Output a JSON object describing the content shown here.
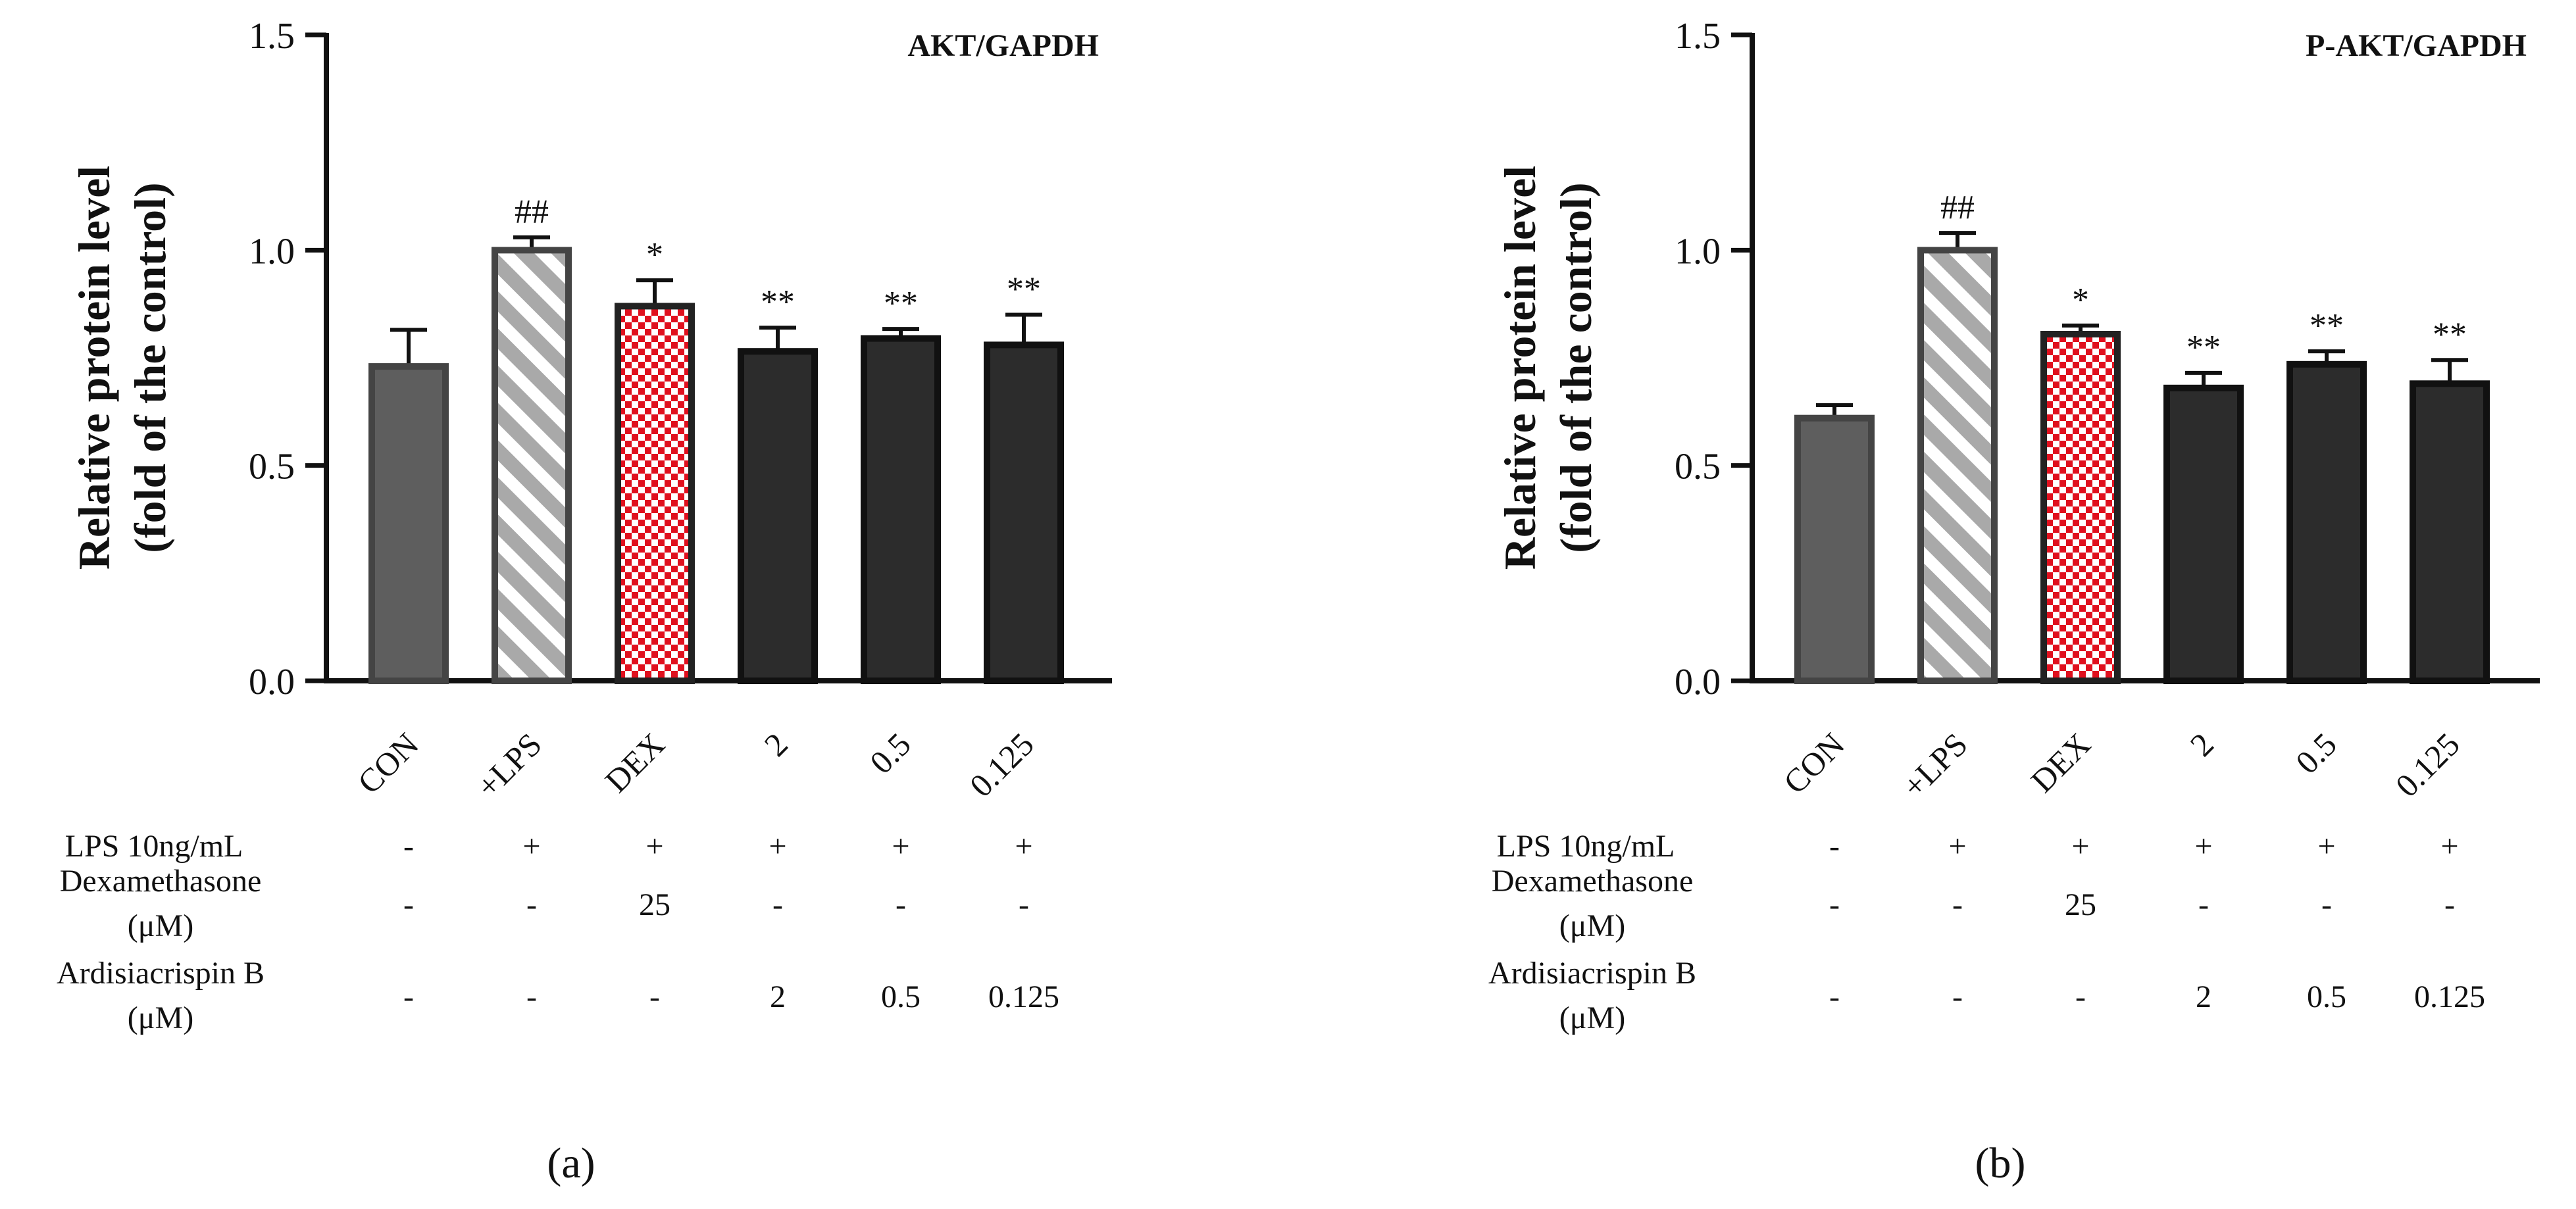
{
  "chart_data": [
    {
      "type": "bar",
      "panel_label": "(a)",
      "title": "AKT/GAPDH",
      "ylabel_line1": "Relative protein level",
      "ylabel_line2": "(fold of the control)",
      "ylim": [
        0,
        1.5
      ],
      "yticks": [
        0.0,
        0.5,
        1.0,
        1.5
      ],
      "ytick_labels": [
        "0.0",
        "0.5",
        "1.0",
        "1.5"
      ],
      "categories": [
        "CON",
        "+LPS",
        "DEX",
        "2",
        "0.5",
        "0.125"
      ],
      "values": [
        0.73,
        1.0,
        0.87,
        0.765,
        0.795,
        0.78
      ],
      "errors": [
        0.085,
        0.03,
        0.06,
        0.055,
        0.022,
        0.07
      ],
      "significance": [
        "",
        "##",
        "*",
        "**",
        "**",
        "**"
      ]
    },
    {
      "type": "bar",
      "panel_label": "(b)",
      "title": "P-AKT/GAPDH",
      "ylabel_line1": "Relative protein level",
      "ylabel_line2": "(fold of the control)",
      "ylim": [
        0,
        1.5
      ],
      "yticks": [
        0.0,
        0.5,
        1.0,
        1.5
      ],
      "ytick_labels": [
        "0.0",
        "0.5",
        "1.0",
        "1.5"
      ],
      "categories": [
        "CON",
        "+LPS",
        "DEX",
        "2",
        "0.5",
        "0.125"
      ],
      "values": [
        0.61,
        1.0,
        0.805,
        0.68,
        0.735,
        0.69
      ],
      "errors": [
        0.03,
        0.04,
        0.02,
        0.035,
        0.03,
        0.055
      ],
      "significance": [
        "",
        "##",
        "*",
        "**",
        "**",
        "**"
      ]
    }
  ],
  "treatment_table": {
    "rows": [
      {
        "label_lines": [
          "LPS  10ng/mL"
        ],
        "values": [
          "-",
          "+",
          "+",
          "+",
          "+",
          "+"
        ]
      },
      {
        "label_lines": [
          "Dexamethasone",
          "(μM)"
        ],
        "values": [
          "-",
          "-",
          "25",
          "-",
          "-",
          "-"
        ]
      },
      {
        "label_lines": [
          "Ardisiacrispin B",
          "(μM)"
        ],
        "values": [
          "-",
          "-",
          "-",
          "2",
          "0.5",
          "0.125"
        ]
      }
    ]
  },
  "colors": {
    "con": "#5e5e5e",
    "lps_stripe": "#a9a9a9",
    "dex_check": "#e0101e",
    "treatment": "#2c2c2c",
    "outline": "#111111"
  }
}
